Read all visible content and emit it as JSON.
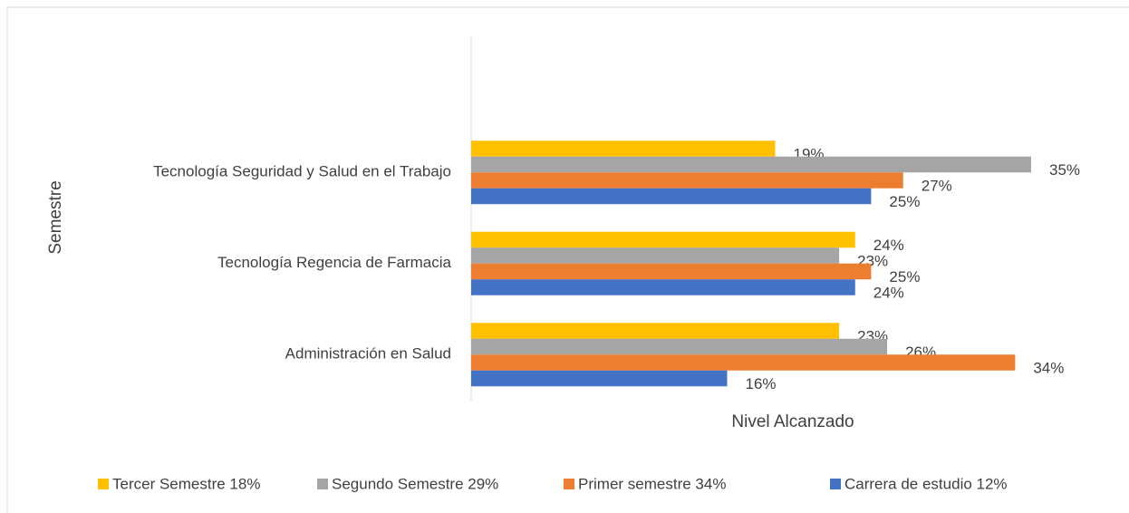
{
  "chart_data": {
    "type": "bar",
    "orientation": "horizontal",
    "x_label": "Nivel Alcanzado",
    "y_label": "Semestre",
    "categories": [
      "Tecnología Seguridad y Salud en el Trabajo",
      "Tecnología Regencia de Farmacia",
      "Administración en Salud"
    ],
    "series": [
      {
        "name": "Tercer Semestre 18%",
        "color": "#ffc000",
        "values": [
          19,
          24,
          23
        ],
        "value_labels": [
          "19%",
          "24%",
          "23%"
        ]
      },
      {
        "name": "Segundo Semestre 29%",
        "color": "#a5a5a5",
        "values": [
          35,
          23,
          26
        ],
        "value_labels": [
          "35%",
          "23%",
          "26%"
        ]
      },
      {
        "name": "Primer semestre 34%",
        "color": "#ed7d31",
        "values": [
          27,
          25,
          34
        ],
        "value_labels": [
          "27%",
          "25%",
          "34%"
        ]
      },
      {
        "name": "Carrera de estudio 12%",
        "color": "#4472c4",
        "values": [
          25,
          24,
          16
        ],
        "value_labels": [
          "25%",
          "24%",
          "16%"
        ]
      }
    ],
    "legend": "bottom"
  }
}
